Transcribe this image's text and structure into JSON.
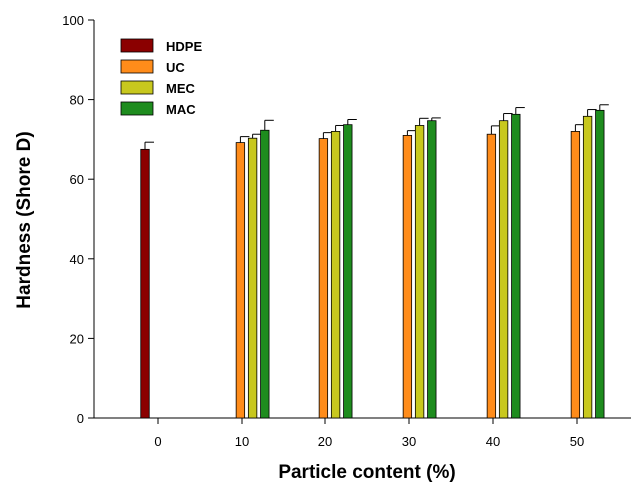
{
  "chart_data": {
    "type": "bar",
    "title": "",
    "xlabel": "Particle content (%)",
    "ylabel": "Hardness (Shore D)",
    "ylim": [
      0,
      100
    ],
    "yticks": [
      "0",
      "20",
      "40",
      "60",
      "80",
      "100"
    ],
    "categories": [
      "0",
      "10",
      "20",
      "30",
      "40",
      "50"
    ],
    "series": [
      {
        "name": "HDPE",
        "color": "#8B0000",
        "values": [
          67.5,
          null,
          null,
          null,
          null,
          null
        ],
        "errors": [
          1.8,
          null,
          null,
          null,
          null,
          null
        ]
      },
      {
        "name": "UC",
        "color": "#FF8C1A",
        "values": [
          null,
          69.2,
          70.2,
          71.0,
          71.3,
          72.0
        ],
        "errors": [
          null,
          1.5,
          1.5,
          1.2,
          2.1,
          1.7
        ]
      },
      {
        "name": "MEC",
        "color": "#C8C81E",
        "values": [
          null,
          70.3,
          72.0,
          73.5,
          74.7,
          75.8
        ],
        "errors": [
          null,
          1.0,
          1.5,
          1.8,
          1.8,
          1.7
        ]
      },
      {
        "name": "MAC",
        "color": "#1E8C1E",
        "values": [
          null,
          72.3,
          73.7,
          74.7,
          76.3,
          77.3
        ],
        "errors": [
          null,
          2.5,
          1.3,
          0.7,
          1.7,
          1.4
        ]
      }
    ],
    "legend_position": "top-left",
    "grid": false,
    "error_bars": true
  }
}
